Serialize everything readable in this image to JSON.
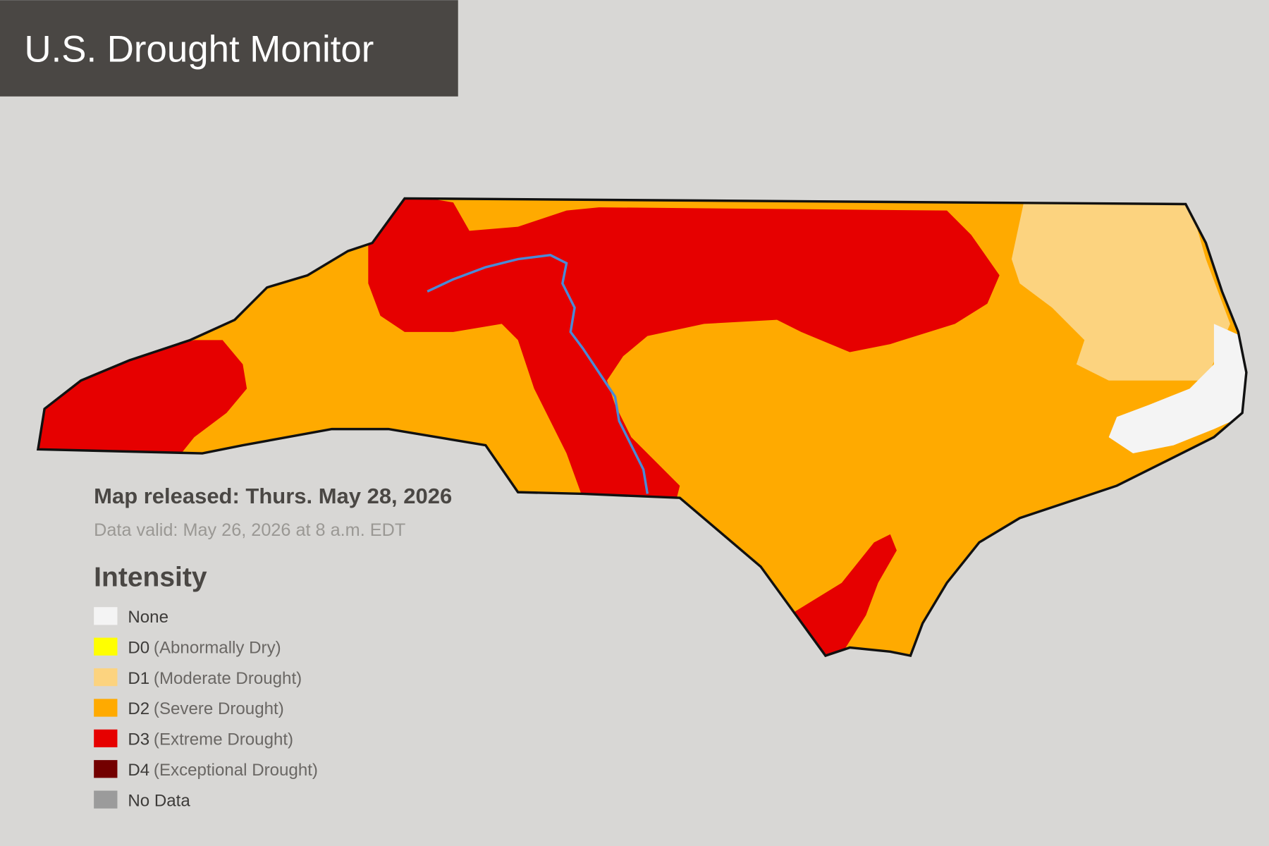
{
  "header": {
    "title": "U.S. Drought Monitor"
  },
  "released": "Map released: Thurs. May 28, 2026",
  "valid": "Data valid: May 26, 2026 at 8 a.m. EDT",
  "legend": {
    "title": "Intensity",
    "items": [
      {
        "code": "None",
        "color": "#f4f4f4"
      },
      {
        "code": "D0",
        "desc": "(Abnormally Dry)",
        "color": "#ffff00"
      },
      {
        "code": "D1",
        "desc": "(Moderate Drought)",
        "color": "#fcd37f"
      },
      {
        "code": "D2",
        "desc": "(Severe Drought)",
        "color": "#ffaa00"
      },
      {
        "code": "D3",
        "desc": "(Extreme Drought)",
        "color": "#e60000"
      },
      {
        "code": "D4",
        "desc": "(Exceptional Drought)",
        "color": "#730000"
      },
      {
        "code": "No Data",
        "color": "#9b9b9b"
      }
    ]
  }
}
